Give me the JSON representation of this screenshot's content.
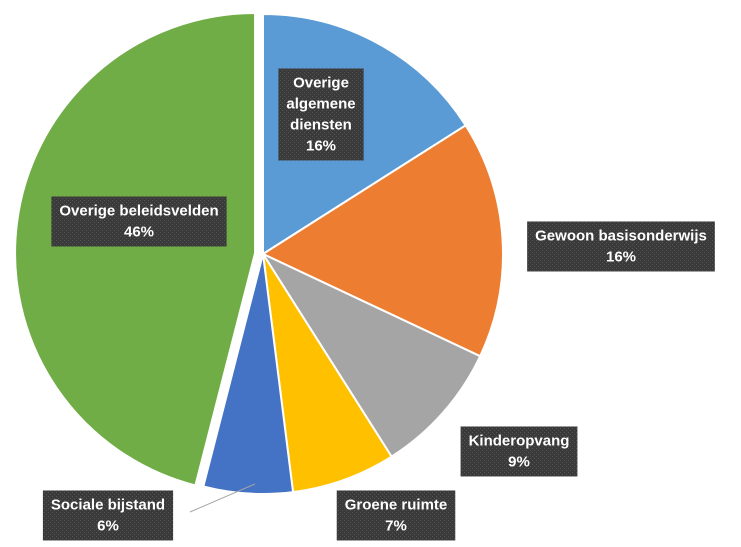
{
  "chart_data": {
    "type": "pie",
    "categories": [
      "Overige algemene diensten",
      "Gewoon basisonderwijs",
      "Kinderopvang",
      "Groene ruimte",
      "Sociale bijstand",
      "Overige beleidsvelden"
    ],
    "values": [
      16,
      16,
      9,
      7,
      6,
      46
    ],
    "value_labels": [
      "16%",
      "16%",
      "9%",
      "7%",
      "6%",
      "46%"
    ],
    "colors": [
      "#5b9bd5",
      "#ed7d31",
      "#a5a5a5",
      "#ffc000",
      "#4472c4",
      "#70ad47"
    ]
  }
}
